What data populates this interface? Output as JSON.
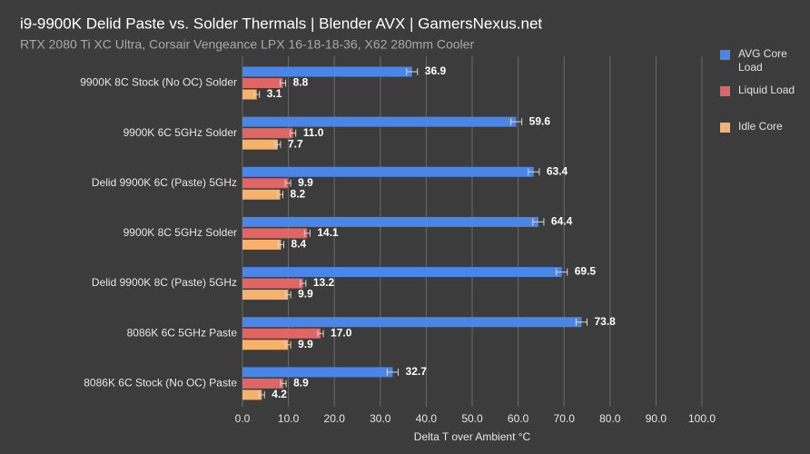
{
  "chart_data": {
    "type": "bar",
    "orientation": "horizontal",
    "title": "i9-9900K Delid Paste vs. Solder Thermals | Blender AVX | GamersNexus.net",
    "subtitle": "RTX 2080 Ti XC Ultra, Corsair Vengeance LPX 16-18-18-36, X62 280mm Cooler",
    "x_label": "Delta T over Ambient °C",
    "categories": [
      "9900K 8C Stock (No OC) Solder",
      "9900K 6C 5GHz Solder",
      "Delid 9900K 6C (Paste) 5GHz",
      "9900K 8C 5GHz Solder",
      "Delid 9900K 8C (Paste) 5GHz",
      "8086K 6C 5GHz Paste",
      "8086K 6C Stock (No OC) Paste"
    ],
    "series": [
      {
        "name": "AVG Core Load",
        "color": "#4a86e8",
        "values": [
          36.9,
          59.6,
          63.4,
          64.4,
          69.5,
          73.8,
          32.7
        ],
        "value_labels": [
          "36.9",
          "59.6",
          "63.4",
          "64.4",
          "69.5",
          "73.8",
          "32.7"
        ],
        "errors": [
          1.2,
          1.2,
          1.2,
          1.2,
          1.2,
          1.2,
          1.2
        ]
      },
      {
        "name": "Liquid Load",
        "color": "#e06666",
        "values": [
          8.8,
          11.0,
          9.9,
          14.1,
          13.2,
          17.0,
          8.9
        ],
        "value_labels": [
          "8.8",
          "11.0",
          "9.9",
          "14.1",
          "13.2",
          "17.0",
          "8.9"
        ],
        "errors": [
          0.6,
          0.6,
          0.6,
          0.6,
          0.6,
          0.6,
          0.6
        ]
      },
      {
        "name": "Idle Core",
        "color": "#f6b26b",
        "values": [
          3.1,
          7.7,
          8.2,
          8.4,
          9.9,
          9.9,
          4.2
        ],
        "value_labels": [
          "3.1",
          "7.7",
          "8.2",
          "8.4",
          "9.9",
          "9.9",
          "4.2"
        ],
        "errors": [
          0.6,
          0.6,
          0.6,
          0.6,
          0.6,
          0.6,
          0.6
        ]
      }
    ],
    "xlim": [
      0,
      100
    ],
    "xticks": [
      {
        "value": 0,
        "label": "0.0"
      },
      {
        "value": 10,
        "label": "10.0"
      },
      {
        "value": 20,
        "label": "20.0"
      },
      {
        "value": 30,
        "label": "30.0"
      },
      {
        "value": 40,
        "label": "40.0"
      },
      {
        "value": 50,
        "label": "50.0"
      },
      {
        "value": 60,
        "label": "60.0"
      },
      {
        "value": 70,
        "label": "70.0"
      },
      {
        "value": 80,
        "label": "80.0"
      },
      {
        "value": 90,
        "label": "90.0"
      },
      {
        "value": 100,
        "label": "100.0"
      }
    ],
    "grid": true,
    "legend": "right"
  }
}
